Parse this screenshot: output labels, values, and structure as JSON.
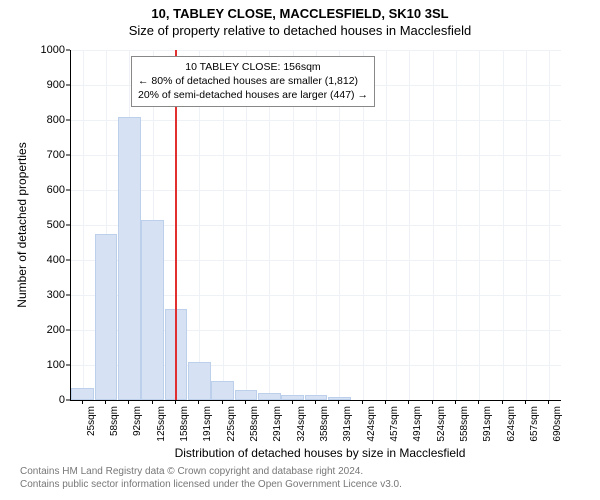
{
  "title_line1": "10, TABLEY CLOSE, MACCLESFIELD, SK10 3SL",
  "title_line2": "Size of property relative to detached houses in Macclesfield",
  "chart": {
    "type": "histogram",
    "x_labels": [
      "25sqm",
      "58sqm",
      "92sqm",
      "125sqm",
      "158sqm",
      "191sqm",
      "225sqm",
      "258sqm",
      "291sqm",
      "324sqm",
      "358sqm",
      "391sqm",
      "424sqm",
      "457sqm",
      "491sqm",
      "524sqm",
      "558sqm",
      "591sqm",
      "624sqm",
      "657sqm",
      "690sqm"
    ],
    "values": [
      35,
      475,
      810,
      515,
      260,
      110,
      55,
      30,
      20,
      15,
      15,
      10,
      0,
      0,
      0,
      0,
      0,
      0,
      0,
      0,
      0
    ],
    "bar_fill": "#d6e2f3",
    "bar_stroke": "#bcd0eb",
    "ylim": [
      0,
      1000
    ],
    "ytick_step": 100,
    "xlabel": "Distribution of detached houses by size in Macclesfield",
    "ylabel": "Number of detached properties",
    "reference_line": {
      "position_index": 3.95,
      "color": "#e03030"
    },
    "background": "#ffffff",
    "grid_color": "#eef2f7",
    "title_fontsize": 13,
    "label_fontsize": 12,
    "tick_fontsize": 10
  },
  "legend": {
    "line1": "10 TABLEY CLOSE: 156sqm",
    "line2": "← 80% of detached houses are smaller (1,812)",
    "line3": "20% of semi-detached houses are larger (447) →"
  },
  "footer": {
    "line1": "Contains HM Land Registry data © Crown copyright and database right 2024.",
    "line2": "Contains public sector information licensed under the Open Government Licence v3.0."
  }
}
